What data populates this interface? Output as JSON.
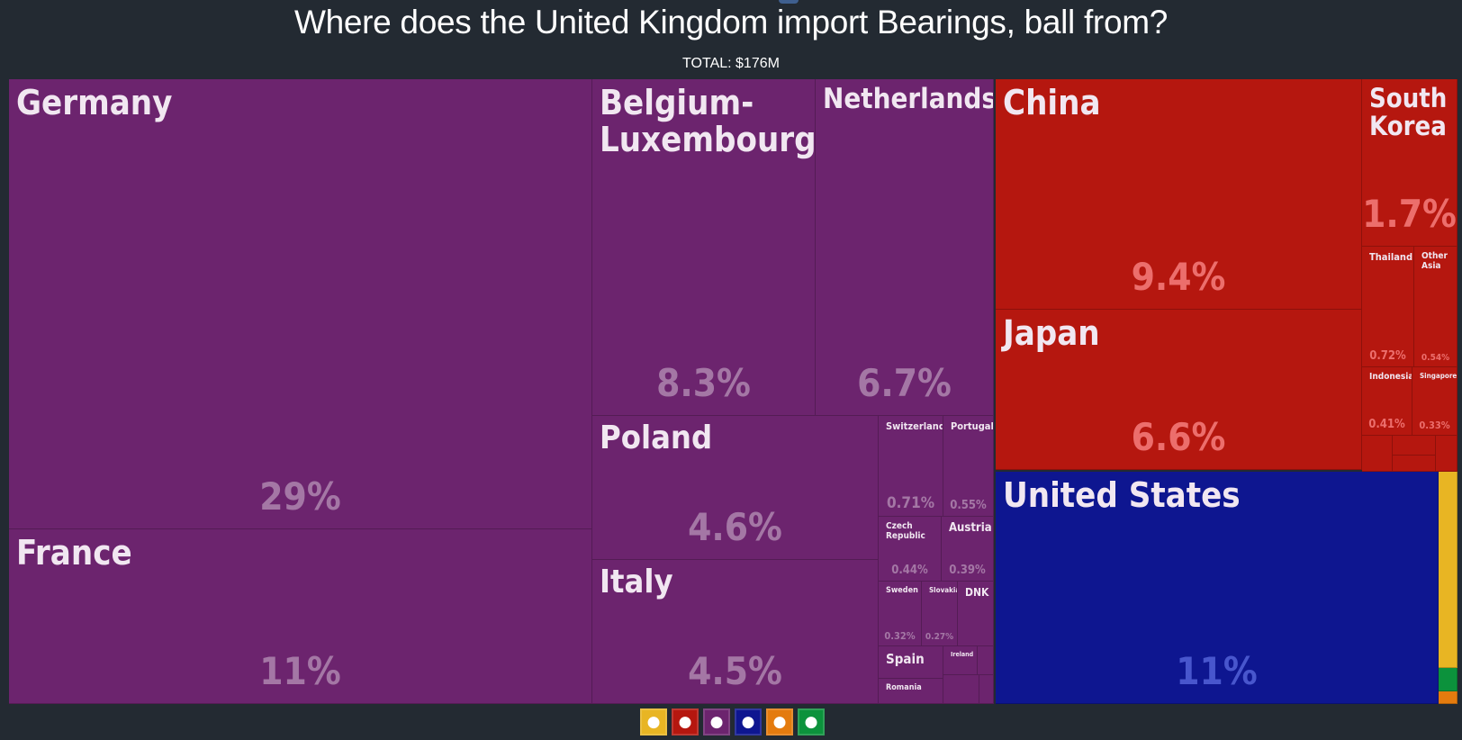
{
  "header": {
    "title": "Where does the United Kingdom import Bearings, ball from?",
    "total": "TOTAL: $176M"
  },
  "colors": {
    "europe": "#6c246e",
    "asia": "#b5170f",
    "north_america": "#0e1690",
    "africa": "#e8b523",
    "oceania": "#e47b0e",
    "south_america": "#0c923c"
  },
  "legend": [
    {
      "name": "africa-icon",
      "glyph": "●",
      "color": "#e8b523"
    },
    {
      "name": "asia-icon",
      "glyph": "●",
      "color": "#b5170f"
    },
    {
      "name": "europe-icon",
      "glyph": "●",
      "color": "#6c246e"
    },
    {
      "name": "north-america-icon",
      "glyph": "●",
      "color": "#0e1690"
    },
    {
      "name": "oceania-icon",
      "glyph": "●",
      "color": "#e47b0e"
    },
    {
      "name": "south-america-icon",
      "glyph": "●",
      "color": "#0c923c"
    }
  ],
  "chart_data": {
    "type": "treemap",
    "title": "Where does the United Kingdom import Bearings, ball from?",
    "total": "TOTAL: $176M",
    "series": [
      {
        "label": "Germany",
        "value": "29%",
        "region": "europe"
      },
      {
        "label": "France",
        "value": "11%",
        "region": "europe"
      },
      {
        "label": "Belgium-Luxembourg",
        "value": "8.3%",
        "region": "europe"
      },
      {
        "label": "Netherlands",
        "value": "6.7%",
        "region": "europe"
      },
      {
        "label": "Poland",
        "value": "4.6%",
        "region": "europe"
      },
      {
        "label": "Italy",
        "value": "4.5%",
        "region": "europe"
      },
      {
        "label": "Switzerland",
        "value": "0.71%",
        "region": "europe"
      },
      {
        "label": "Portugal",
        "value": "0.55%",
        "region": "europe"
      },
      {
        "label": "Czech Republic",
        "value": "0.44%",
        "region": "europe"
      },
      {
        "label": "Austria",
        "value": "0.39%",
        "region": "europe"
      },
      {
        "label": "Sweden",
        "value": "0.32%",
        "region": "europe"
      },
      {
        "label": "Slovakia",
        "value": "0.27%",
        "region": "europe"
      },
      {
        "label": "DNK",
        "value": "",
        "region": "europe"
      },
      {
        "label": "Spain",
        "value": "",
        "region": "europe"
      },
      {
        "label": "Ireland",
        "value": "",
        "region": "europe"
      },
      {
        "label": "Romania",
        "value": "",
        "region": "europe"
      },
      {
        "label": "China",
        "value": "9.4%",
        "region": "asia"
      },
      {
        "label": "Japan",
        "value": "6.6%",
        "region": "asia"
      },
      {
        "label": "South Korea",
        "value": "1.7%",
        "region": "asia"
      },
      {
        "label": "Thailand",
        "value": "0.72%",
        "region": "asia"
      },
      {
        "label": "Other Asia",
        "value": "0.54%",
        "region": "asia"
      },
      {
        "label": "Indonesia",
        "value": "0.41%",
        "region": "asia"
      },
      {
        "label": "Singapore",
        "value": "0.33%",
        "region": "asia"
      },
      {
        "label": "United States",
        "value": "11%",
        "region": "north_america"
      }
    ]
  }
}
